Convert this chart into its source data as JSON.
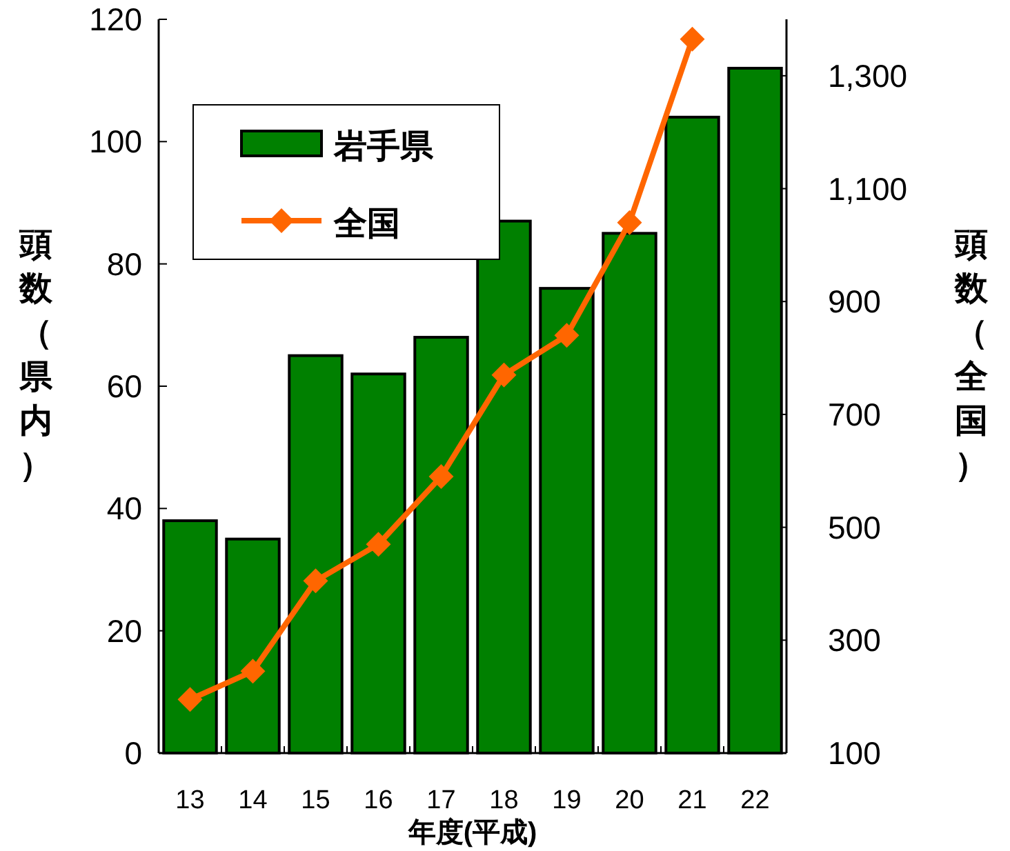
{
  "chart_data": {
    "type": "bar",
    "categories": [
      "13",
      "14",
      "15",
      "16",
      "17",
      "18",
      "19",
      "20",
      "21",
      "22"
    ],
    "xlabel": "年度(平成)",
    "ylabel": "頭数（県内）",
    "y2label": "頭数（全国）",
    "series": [
      {
        "name": "岩手県",
        "color": "#008000",
        "values": [
          38,
          35,
          65,
          62,
          68,
          87,
          76,
          85,
          104,
          112
        ]
      },
      {
        "name": "全国",
        "type": "line",
        "axis": "y2",
        "color": "#ff6600",
        "marker": "diamond",
        "values": [
          195,
          245,
          405,
          470,
          590,
          770,
          840,
          1040,
          1365,
          null
        ]
      }
    ],
    "ylim": [
      0,
      120
    ],
    "yticks": [
      0,
      20,
      40,
      60,
      80,
      100,
      120
    ],
    "y2lim": [
      100,
      1400
    ],
    "y2ticks": [
      100,
      300,
      500,
      700,
      900,
      {
        "value": 1100,
        "label": "1,100"
      },
      {
        "value": 1300,
        "label": "1,300"
      }
    ],
    "legend": "top left",
    "grid": false
  }
}
